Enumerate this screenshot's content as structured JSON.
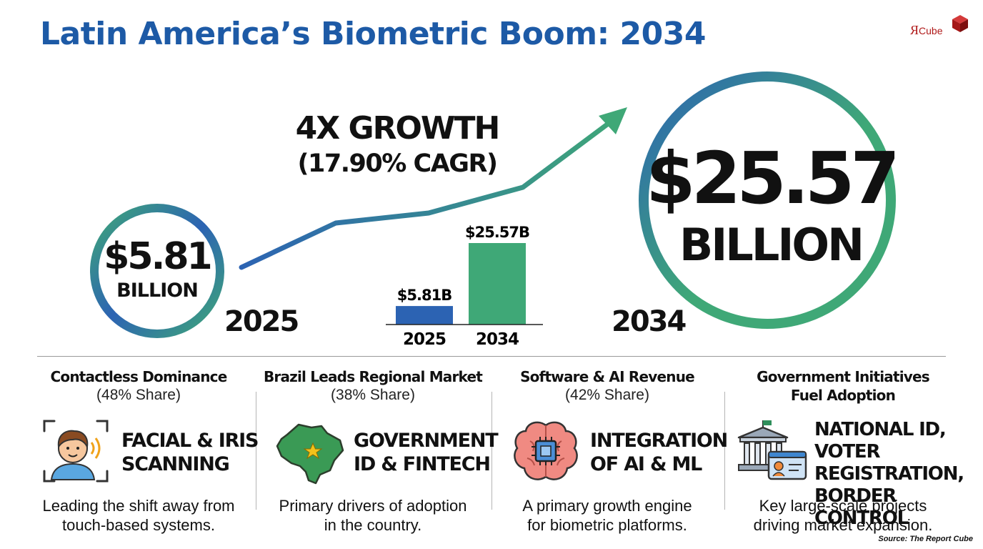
{
  "title": "Latin America’s Biometric Boom: 2034",
  "logo": {
    "text_main": "Я",
    "text_small": "Cube"
  },
  "hero": {
    "start_value": "$5.81",
    "start_unit": "BILLION",
    "start_year": "2025",
    "end_value": "$25.57",
    "end_unit": "BILLION",
    "end_year": "2034",
    "growth": "4X GROWTH",
    "cagr": "(17.90% CAGR)"
  },
  "chart_data": {
    "type": "bar",
    "categories": [
      "2025",
      "2034"
    ],
    "values": [
      5.81,
      25.57
    ],
    "data_labels": [
      "$5.81B",
      "$25.57B"
    ],
    "colors": [
      "#2c63b3",
      "#3fa877"
    ],
    "title": "",
    "xlabel": "",
    "ylabel": "",
    "ylim": [
      0,
      25.57
    ],
    "grid": false
  },
  "panels": [
    {
      "title": "Contactless Dominance",
      "subtitle": "(48% Share)",
      "label_lines": [
        "FACIAL & IRIS",
        "SCANNING"
      ],
      "description_lines": [
        "Leading the shift away from",
        "touch-based systems."
      ]
    },
    {
      "title": "Brazil Leads Regional Market",
      "subtitle": "(38% Share)",
      "label_lines": [
        "GOVERNMENT",
        "ID & FINTECH"
      ],
      "description_lines": [
        "Primary drivers of adoption",
        "in the country."
      ]
    },
    {
      "title": "Software & AI Revenue",
      "subtitle": "(42% Share)",
      "label_lines": [
        "INTEGRATION",
        "OF AI & ML"
      ],
      "description_lines": [
        "A primary growth engine",
        "for biometric platforms."
      ]
    },
    {
      "title_lines": [
        "Government Initiatives",
        "Fuel Adoption"
      ],
      "label_lines": [
        "NATIONAL ID, VOTER",
        "REGISTRATION,",
        "BORDER CONTROL"
      ],
      "description_lines": [
        "Key large-scale projects",
        "driving market expansion."
      ]
    }
  ],
  "source": "Source: The Report Cube",
  "colors": {
    "title": "#1d5aa6",
    "blue": "#2c63b3",
    "green": "#3fa877",
    "brand_red": "#b01a1a"
  }
}
